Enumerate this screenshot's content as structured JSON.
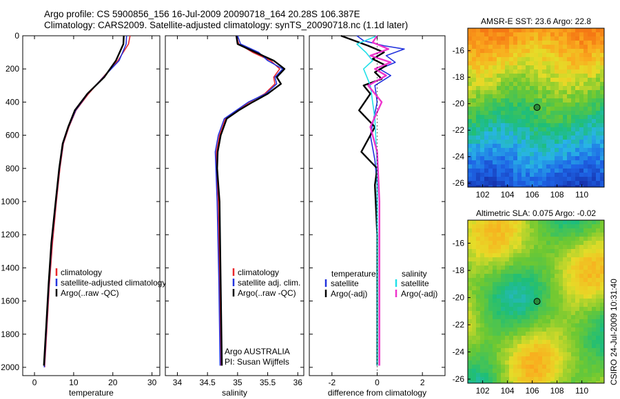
{
  "figure": {
    "title_line1": "Argo profile: CS 5900856_156 16-Jul-2009 20090718_164 20.28S 106.387E",
    "title_line2": "Climatology: CARS2009. Satellite-adjusted climatology: synTS_20090718.nc (1.1d later)",
    "stamp": "CSIRO 24-Jul-2009 10:31:40",
    "notes": [
      "Argo AUSTRALIA",
      "PI: Susan Wijffels"
    ]
  },
  "colors": {
    "climatology": "#e8262b",
    "satellite": "#2233dd",
    "argo": "#000000",
    "satellite_salinity": "#22e0e8",
    "argo_salinity": "#ee33cc"
  },
  "chart_data": [
    {
      "type": "line",
      "xlabel": "temperature",
      "ylabel": "",
      "xlim": [
        -3,
        32
      ],
      "ylim": [
        2050,
        0
      ],
      "xticks": [
        0,
        10,
        20,
        30
      ],
      "yticks": [
        0,
        200,
        400,
        600,
        800,
        1000,
        1200,
        1400,
        1600,
        1800,
        2000
      ],
      "legend": [
        "climatology",
        "satellite-adjusted climatology",
        "Argo(..raw -QC)"
      ],
      "legend_position": "lower-right",
      "series": [
        {
          "name": "climatology",
          "color_key": "climatology",
          "x": [
            24.4,
            24.0,
            21.3,
            17.5,
            13.8,
            10.6,
            8.8,
            7.4,
            6.5,
            5.6,
            4.6,
            3.8,
            3.2,
            2.6
          ],
          "y": [
            0,
            50,
            150,
            250,
            350,
            450,
            550,
            650,
            800,
            1000,
            1250,
            1500,
            1750,
            2000
          ]
        },
        {
          "name": "satellite-adjusted climatology",
          "color_key": "satellite",
          "x": [
            23.5,
            23.4,
            21.6,
            17.6,
            13.6,
            10.5,
            8.7,
            7.3,
            6.4,
            5.5,
            4.4,
            3.7,
            3.1,
            2.5
          ],
          "y": [
            0,
            50,
            150,
            250,
            350,
            450,
            550,
            650,
            800,
            1000,
            1250,
            1500,
            1750,
            2000
          ]
        },
        {
          "name": "Argo(..raw -QC)",
          "color_key": "argo",
          "x": [
            22.8,
            22.7,
            20.8,
            17.8,
            13.5,
            10.3,
            8.6,
            7.2,
            6.3,
            5.4,
            4.3,
            3.6,
            3.0,
            2.4
          ],
          "y": [
            0,
            50,
            150,
            250,
            350,
            450,
            550,
            650,
            800,
            1000,
            1250,
            1500,
            1750,
            1990
          ]
        }
      ]
    },
    {
      "type": "line",
      "xlabel": "salinity",
      "ylabel": "",
      "xlim": [
        33.8,
        36.1
      ],
      "ylim": [
        2050,
        0
      ],
      "xticks": [
        34,
        34.5,
        35,
        35.5,
        36
      ],
      "legend": [
        "climatology",
        "satellite adj. clim.",
        "Argo(..raw -QC)"
      ],
      "legend_position": "lower-right",
      "series": [
        {
          "name": "climatology",
          "color_key": "climatology",
          "x": [
            34.98,
            35.02,
            35.25,
            35.55,
            35.7,
            35.6,
            35.62,
            35.45,
            35.2,
            35.0,
            34.8,
            34.7,
            34.65,
            34.65,
            34.68,
            34.7,
            34.72
          ],
          "y": [
            0,
            50,
            100,
            150,
            200,
            250,
            290,
            350,
            400,
            450,
            500,
            600,
            700,
            800,
            1000,
            1500,
            1990
          ]
        },
        {
          "name": "satellite adj. clim.",
          "color_key": "satellite",
          "x": [
            35.0,
            35.05,
            35.35,
            35.5,
            35.75,
            35.62,
            35.65,
            35.47,
            35.18,
            34.98,
            34.78,
            34.68,
            34.63,
            34.64,
            34.66,
            34.69,
            34.71
          ],
          "y": [
            0,
            50,
            100,
            150,
            200,
            250,
            290,
            350,
            400,
            450,
            500,
            600,
            700,
            800,
            1000,
            1500,
            1990
          ]
        },
        {
          "name": "Argo(..raw -QC)",
          "color_key": "argo",
          "x": [
            34.98,
            35.0,
            35.3,
            35.6,
            35.78,
            35.65,
            35.72,
            35.5,
            35.25,
            35.02,
            34.82,
            34.72,
            34.67,
            34.66,
            34.7,
            34.72,
            34.74
          ],
          "y": [
            0,
            50,
            100,
            150,
            200,
            250,
            290,
            350,
            400,
            450,
            500,
            600,
            700,
            800,
            1000,
            1500,
            1990
          ]
        }
      ]
    },
    {
      "type": "line",
      "xlabel": "difference from climatology",
      "ylabel": "",
      "xlim": [
        -3,
        3
      ],
      "ylim": [
        2050,
        0
      ],
      "xticks": [
        -2,
        0,
        2
      ],
      "legend": [
        "temperature",
        "satellite",
        "Argo(-adj)",
        "salinity",
        "satellite",
        "Argo(-adj)"
      ],
      "legend_position": "lower-center",
      "series": [
        {
          "name": "temperature satellite",
          "color_key": "satellite",
          "x": [
            -0.9,
            -0.6,
            0.3,
            1.2,
            0.4,
            0.8,
            0.1,
            0.6,
            -0.1,
            0.0,
            -0.3,
            -0.1,
            0.0,
            0.0,
            0.0
          ],
          "y": [
            0,
            30,
            60,
            80,
            120,
            160,
            200,
            240,
            300,
            400,
            600,
            750,
            900,
            1200,
            1990
          ]
        },
        {
          "name": "temperature Argo(-adj)",
          "color_key": "argo",
          "x": [
            -1.6,
            -1.0,
            -0.4,
            0.3,
            -0.2,
            0.4,
            -0.1,
            0.2,
            -0.6,
            -0.3,
            -0.8,
            -0.1,
            -0.7,
            0.0,
            -0.1,
            0.0,
            0.0
          ],
          "y": [
            0,
            30,
            60,
            100,
            140,
            180,
            220,
            260,
            300,
            350,
            450,
            550,
            700,
            800,
            900,
            1200,
            1990
          ]
        },
        {
          "name": "salinity satellite",
          "color_key": "satellite_salinity",
          "x": [
            0.0,
            -0.9,
            -0.5,
            -0.2,
            -0.6,
            -0.3,
            -0.1,
            0.0,
            0.0
          ],
          "y": [
            0,
            50,
            100,
            150,
            200,
            300,
            500,
            800,
            1990
          ]
        },
        {
          "name": "salinity Argo(-adj)",
          "color_key": "argo_salinity",
          "x": [
            0.0,
            -0.2,
            0.5,
            -0.3,
            0.6,
            -0.1,
            0.4,
            -0.4,
            0.2,
            -0.3,
            0.0,
            0.1,
            0.1
          ],
          "y": [
            0,
            40,
            80,
            120,
            160,
            200,
            240,
            300,
            400,
            550,
            700,
            1000,
            1990
          ]
        }
      ]
    },
    {
      "type": "heatmap",
      "title": "AMSR-E SST: 23.6  Argo: 22.8",
      "xlim": [
        100.8,
        111.8
      ],
      "ylim": [
        -26.3,
        -14.3
      ],
      "xticks": [
        102,
        104,
        106,
        108,
        110
      ],
      "yticks": [
        -16,
        -18,
        -20,
        -22,
        -24,
        -26
      ],
      "marker": {
        "lon": 106.387,
        "lat": -20.28
      }
    },
    {
      "type": "heatmap",
      "title": "Altimetric SLA: 0.075  Argo: -0.02",
      "xlim": [
        100.8,
        111.8
      ],
      "ylim": [
        -26.3,
        -14.3
      ],
      "xticks": [
        102,
        104,
        106,
        108,
        110
      ],
      "yticks": [
        -16,
        -18,
        -20,
        -22,
        -24,
        -26
      ],
      "marker": {
        "lon": 106.387,
        "lat": -20.28
      }
    }
  ]
}
